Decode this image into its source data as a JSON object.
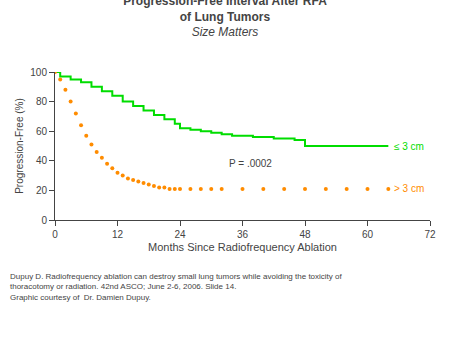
{
  "chart_data": {
    "type": "line",
    "title": "Progression-Free Interval After RFA\nof Lung Tumors",
    "subtitle": "Size Matters",
    "x_label": "Months Since Radiofrequency Ablation",
    "y_label": "Progression-Free (%)",
    "series": [
      {
        "name": "≤ 3 cm",
        "type": "step",
        "color": "#00dd00",
        "x": [
          0,
          1,
          3,
          5,
          7,
          9,
          11,
          13,
          15,
          17,
          19,
          21,
          23,
          24,
          26,
          28,
          30,
          32,
          34,
          36,
          38,
          40,
          42,
          44,
          46,
          48,
          50,
          52,
          54,
          56,
          58,
          60,
          62,
          64
        ],
        "values": [
          100,
          97,
          95,
          93,
          90,
          87,
          84,
          80,
          77,
          74,
          71,
          68,
          65,
          62,
          61,
          60,
          59,
          58,
          57,
          57,
          56,
          56,
          55,
          55,
          54,
          50,
          50,
          50,
          50,
          50,
          50,
          50,
          50,
          50
        ]
      },
      {
        "name": "> 3 cm",
        "type": "scatter",
        "marker": "circle",
        "color": "#ff8c00",
        "x": [
          0,
          1,
          2,
          3,
          4,
          5,
          6,
          7,
          8,
          9,
          10,
          11,
          12,
          13,
          14,
          15,
          16,
          17,
          18,
          19,
          20,
          21,
          22,
          23,
          24,
          26,
          28,
          30,
          32,
          36,
          40,
          44,
          48,
          52,
          56,
          60,
          64
        ],
        "values": [
          100,
          95,
          88,
          80,
          72,
          64,
          57,
          51,
          46,
          42,
          38,
          35,
          32,
          30,
          28,
          27,
          26,
          25,
          24,
          23,
          22,
          22,
          21,
          21,
          21,
          21,
          21,
          21,
          21,
          21,
          21,
          21,
          21,
          21,
          21,
          21,
          21
        ]
      }
    ],
    "annotations": [
      "P = .0002",
      "Dupuy D. Radiofrequency ablation can destroy small lung tumors while avoiding the toxicity of\nthoracotomy or radiation. 42nd ASCO; June 2-6, 2006. Slide 14.\nGraphic courtesy of  Dr. Damien Dupuy."
    ],
    "xlim": [
      0,
      72
    ],
    "ylim": [
      0,
      100
    ],
    "xticks": [
      0,
      12,
      24,
      36,
      48,
      60,
      72
    ],
    "yticks": [
      0,
      20,
      40,
      60,
      80,
      100
    ],
    "grid": false
  }
}
